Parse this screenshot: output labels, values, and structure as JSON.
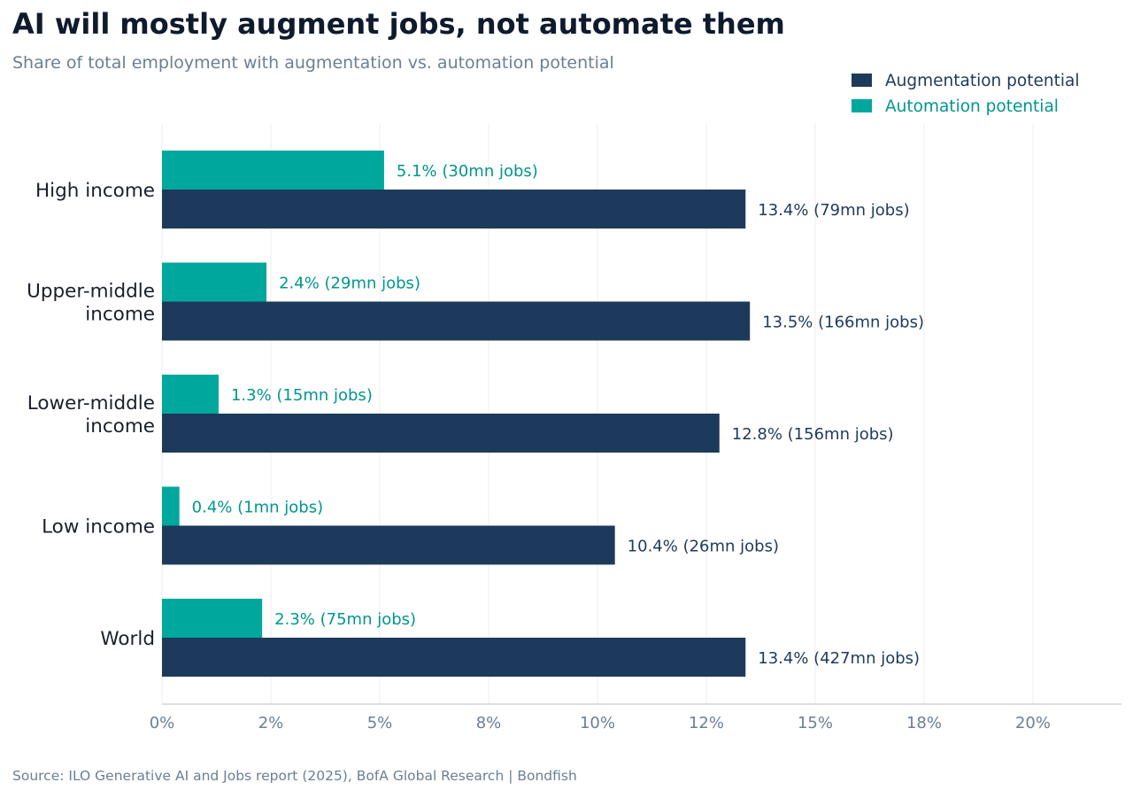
{
  "chart_data": {
    "type": "bar",
    "orientation": "horizontal",
    "title": "AI will mostly augment jobs, not automate them",
    "subtitle": "Share of total employment with augmentation vs. automation potential",
    "source": "Source: ILO Generative AI and Jobs report (2025), BofA Global Research  |  Bondfish",
    "categories": [
      [
        "High income"
      ],
      [
        "Upper-middle",
        "income"
      ],
      [
        "Lower-middle",
        "income"
      ],
      [
        "Low income"
      ],
      [
        "World"
      ]
    ],
    "series": [
      {
        "name": "Automation potential",
        "color": "#00a79d",
        "label_color": "#00968d",
        "values": [
          5.1,
          2.4,
          1.3,
          0.4,
          2.3
        ],
        "labels": [
          "5.1%  (30mn jobs)",
          "2.4%  (29mn jobs)",
          "1.3%  (15mn jobs)",
          "0.4%  (1mn jobs)",
          "2.3%  (75mn jobs)"
        ]
      },
      {
        "name": "Augmentation potential",
        "color": "#1d3a5c",
        "label_color": "#1d3a5c",
        "values": [
          13.4,
          13.5,
          12.8,
          10.4,
          13.4
        ],
        "labels": [
          "13.4%  (79mn jobs)",
          "13.5%  (166mn jobs)",
          "12.8%  (156mn jobs)",
          "10.4%  (26mn jobs)",
          "13.4%  (427mn jobs)"
        ]
      }
    ],
    "legend": {
      "position": "top-right",
      "order": [
        "Augmentation potential",
        "Automation potential"
      ]
    },
    "xlim": [
      0,
      22
    ],
    "xticks": [
      0,
      2.5,
      5,
      7.5,
      10,
      12.5,
      15,
      17.5,
      20
    ],
    "xtick_labels": [
      "0%",
      "2%",
      "5%",
      "8%",
      "10%",
      "12%",
      "15%",
      "18%",
      "20%"
    ],
    "grid": "vertical",
    "xlabel": "",
    "ylabel": ""
  }
}
